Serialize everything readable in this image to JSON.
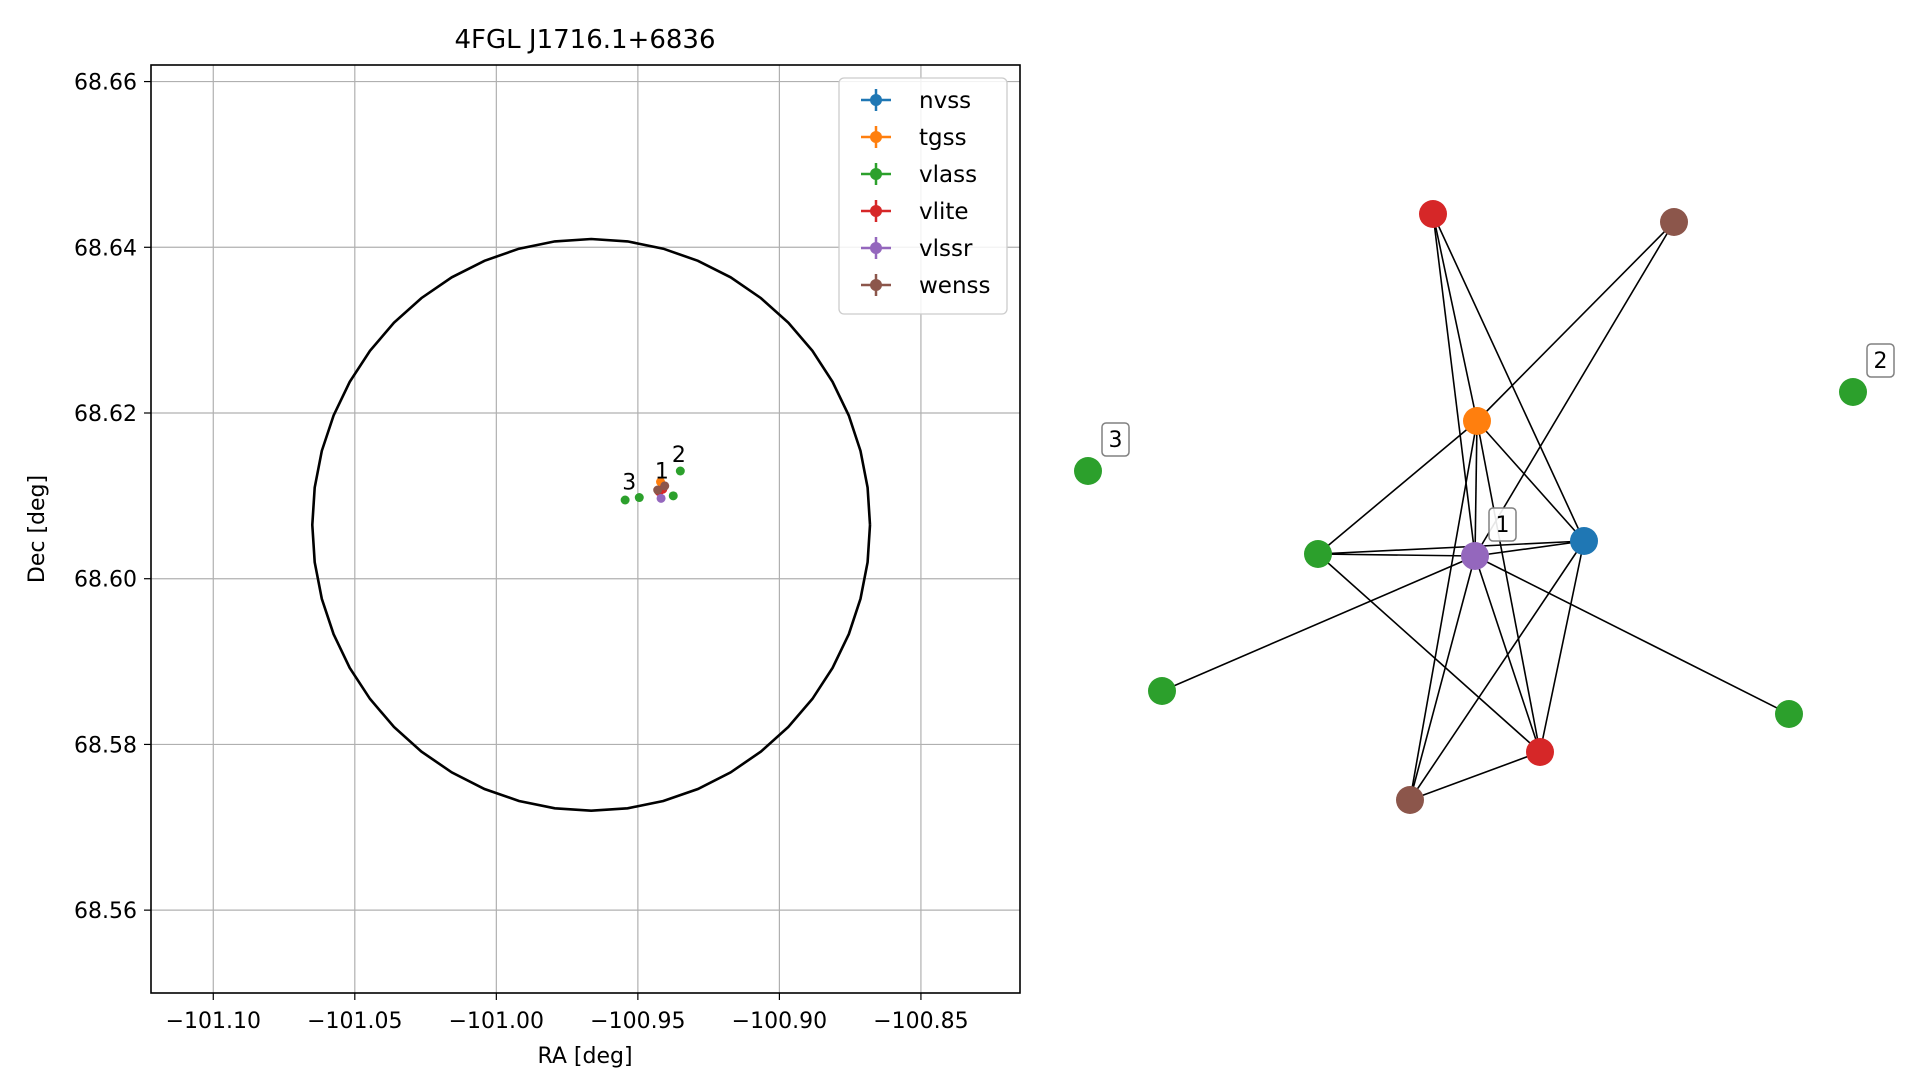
{
  "chart_data": [
    {
      "type": "scatter",
      "title": "4FGL J1716.1+6836",
      "xlabel": "RA [deg]",
      "ylabel": "Dec [deg]",
      "xlim": [
        -101.122,
        -100.815
      ],
      "ylim": [
        68.55,
        68.662
      ],
      "x_ticks": [
        "−101.10",
        "−101.05",
        "−101.00",
        "−100.95",
        "−100.90",
        "−100.85"
      ],
      "x_tick_values": [
        -101.1,
        -101.05,
        -101.0,
        -100.95,
        -100.9,
        -100.85
      ],
      "y_ticks": [
        "68.56",
        "68.58",
        "68.60",
        "68.62",
        "68.64",
        "68.66"
      ],
      "y_tick_values": [
        68.56,
        68.58,
        68.6,
        68.62,
        68.64,
        68.66
      ],
      "grid": true,
      "legend_position": "top-right",
      "legend": [
        {
          "name": "nvss",
          "color": "#1f77b4"
        },
        {
          "name": "tgss",
          "color": "#ff7f0e"
        },
        {
          "name": "vlass",
          "color": "#2ca02c"
        },
        {
          "name": "vlite",
          "color": "#d62728"
        },
        {
          "name": "vlssr",
          "color": "#9467bd"
        },
        {
          "name": "wenss",
          "color": "#8c564b"
        }
      ],
      "ellipse": {
        "center": [
          -100.9665,
          68.6065
        ],
        "semi_axis_ra": 0.0985,
        "semi_axis_dec": 0.0345
      },
      "points": [
        {
          "survey": "nvss",
          "ra": -100.9415,
          "dec": 68.611
        },
        {
          "survey": "tgss",
          "ra": -100.942,
          "dec": 68.6117
        },
        {
          "survey": "vlass",
          "ra": -100.9375,
          "dec": 68.61
        },
        {
          "survey": "vlass",
          "ra": -100.935,
          "dec": 68.613
        },
        {
          "survey": "vlass",
          "ra": -100.9495,
          "dec": 68.6098
        },
        {
          "survey": "vlass",
          "ra": -100.9545,
          "dec": 68.6095
        },
        {
          "survey": "vlite",
          "ra": -100.9425,
          "dec": 68.6105
        },
        {
          "survey": "vlite",
          "ra": -100.9412,
          "dec": 68.6108
        },
        {
          "survey": "vlssr",
          "ra": -100.9418,
          "dec": 68.6097
        },
        {
          "survey": "wenss",
          "ra": -100.943,
          "dec": 68.6107
        },
        {
          "survey": "wenss",
          "ra": -100.9405,
          "dec": 68.6112
        }
      ],
      "labels": [
        {
          "text": "1",
          "ra": -100.944,
          "dec": 68.6116
        },
        {
          "text": "2",
          "ra": -100.938,
          "dec": 68.6136
        },
        {
          "text": "3",
          "ra": -100.9555,
          "dec": 68.6103
        }
      ]
    },
    {
      "type": "network",
      "nodes": [
        {
          "id": "tgss",
          "survey": "tgss",
          "color": "#ff7f0e"
        },
        {
          "id": "nvss",
          "survey": "nvss",
          "color": "#1f77b4"
        },
        {
          "id": "vlssr",
          "survey": "vlssr",
          "color": "#9467bd"
        },
        {
          "id": "vlite1",
          "survey": "vlite",
          "color": "#d62728"
        },
        {
          "id": "vlite2",
          "survey": "vlite",
          "color": "#d62728"
        },
        {
          "id": "wenss1",
          "survey": "wenss",
          "color": "#8c564b"
        },
        {
          "id": "wenss2",
          "survey": "wenss",
          "color": "#8c564b"
        },
        {
          "id": "vlass1",
          "survey": "vlass",
          "color": "#2ca02c"
        },
        {
          "id": "vlass2",
          "survey": "vlass",
          "color": "#2ca02c"
        },
        {
          "id": "vlass3",
          "survey": "vlass",
          "color": "#2ca02c"
        },
        {
          "id": "vlass4",
          "survey": "vlass",
          "color": "#2ca02c"
        },
        {
          "id": "vlass5",
          "survey": "vlass",
          "color": "#2ca02c"
        }
      ],
      "edges": [
        [
          "vlite1",
          "tgss"
        ],
        [
          "vlite1",
          "vlssr"
        ],
        [
          "vlite1",
          "nvss"
        ],
        [
          "wenss1",
          "tgss"
        ],
        [
          "wenss1",
          "vlssr"
        ],
        [
          "tgss",
          "vlssr"
        ],
        [
          "tgss",
          "nvss"
        ],
        [
          "tgss",
          "vlass1"
        ],
        [
          "tgss",
          "vlite2"
        ],
        [
          "tgss",
          "wenss2"
        ],
        [
          "vlass1",
          "vlssr"
        ],
        [
          "vlass1",
          "nvss"
        ],
        [
          "vlass1",
          "vlite2"
        ],
        [
          "vlssr",
          "nvss"
        ],
        [
          "vlssr",
          "vlass2"
        ],
        [
          "vlssr",
          "vlass3"
        ],
        [
          "vlssr",
          "vlite2"
        ],
        [
          "vlssr",
          "wenss2"
        ],
        [
          "nvss",
          "vlite2"
        ],
        [
          "nvss",
          "wenss2"
        ],
        [
          "vlite2",
          "wenss2"
        ]
      ],
      "group_labels": [
        {
          "text": "1",
          "node": "vlssr"
        },
        {
          "text": "2",
          "node": "vlass5"
        },
        {
          "text": "3",
          "node": "vlass4"
        }
      ]
    }
  ]
}
